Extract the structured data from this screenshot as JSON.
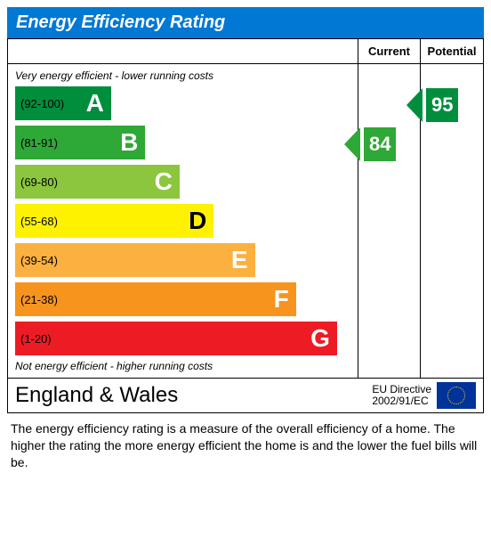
{
  "title": "Energy Efficiency Rating",
  "title_bg": "#0078d4",
  "columns": {
    "current": "Current",
    "potential": "Potential"
  },
  "captions": {
    "top": "Very energy efficient - lower running costs",
    "bottom": "Not energy efficient - higher running costs"
  },
  "bands": [
    {
      "letter": "A",
      "range": "(92-100)",
      "color": "#008e3c",
      "width_pct": 28,
      "letter_dark": false
    },
    {
      "letter": "B",
      "range": "(81-91)",
      "color": "#2ea836",
      "width_pct": 38,
      "letter_dark": false
    },
    {
      "letter": "C",
      "range": "(69-80)",
      "color": "#8cc63f",
      "width_pct": 48,
      "letter_dark": false
    },
    {
      "letter": "D",
      "range": "(55-68)",
      "color": "#fff200",
      "width_pct": 58,
      "letter_dark": true
    },
    {
      "letter": "E",
      "range": "(39-54)",
      "color": "#fbb040",
      "width_pct": 70,
      "letter_dark": false
    },
    {
      "letter": "F",
      "range": "(21-38)",
      "color": "#f7941e",
      "width_pct": 82,
      "letter_dark": false
    },
    {
      "letter": "G",
      "range": "(1-20)",
      "color": "#ed1c24",
      "width_pct": 94,
      "letter_dark": false
    }
  ],
  "band_row_height": 44,
  "ratings": {
    "current": {
      "value": "84",
      "band_index": 1,
      "color": "#2ea836"
    },
    "potential": {
      "value": "95",
      "band_index": 0,
      "color": "#008e3c"
    }
  },
  "footer": {
    "region": "England & Wales",
    "directive_l1": "EU Directive",
    "directive_l2": "2002/91/EC"
  },
  "description": "The energy efficiency rating is a measure of the overall efficiency of a home.  The higher the rating the more energy efficient the home is and the lower the fuel bills will be."
}
